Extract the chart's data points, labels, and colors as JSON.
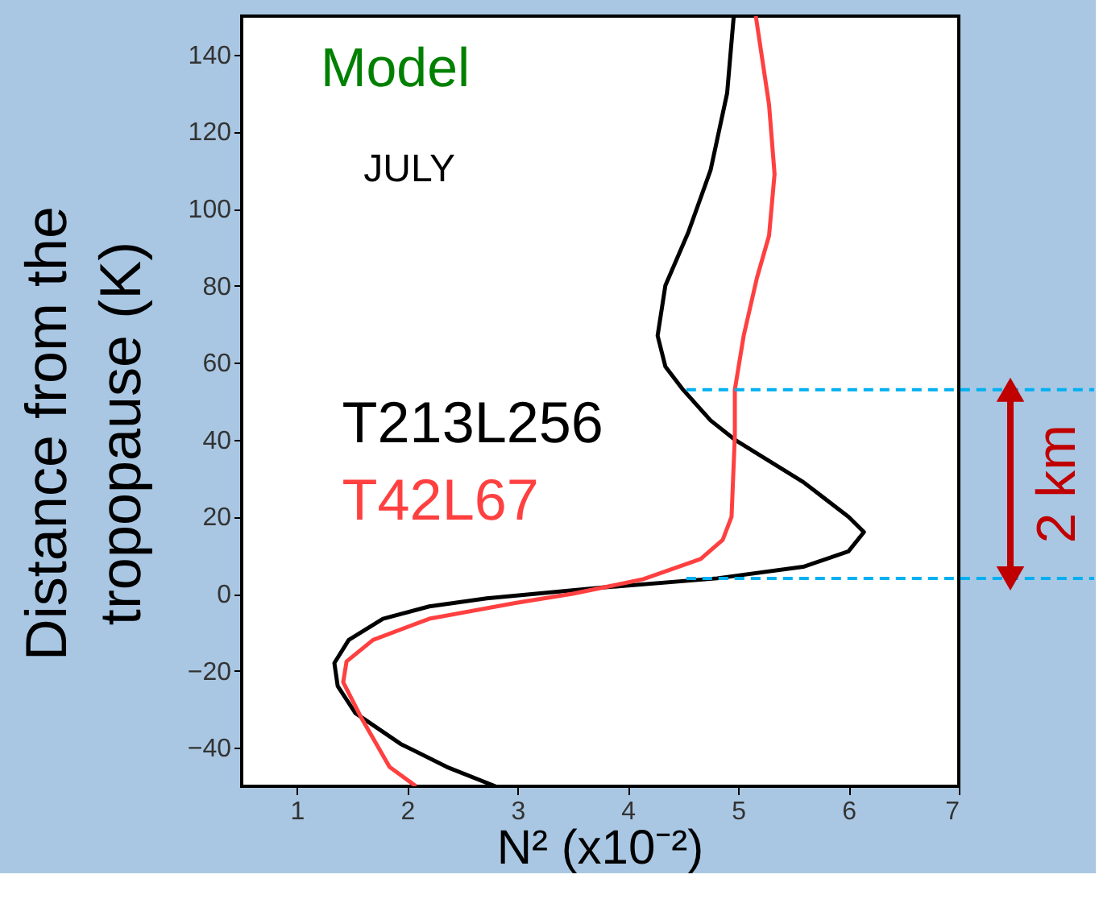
{
  "chart_data": {
    "type": "line",
    "xlabel": "N² (x10⁻²)",
    "ylabel": "Distance from the tropopause (K)",
    "xlim": [
      0.5,
      7
    ],
    "xticks": [
      1,
      2,
      3,
      4,
      5,
      6,
      7
    ],
    "ylim": [
      -50,
      150
    ],
    "yticks": [
      {
        "value": -40,
        "label": "−40"
      },
      {
        "value": -20,
        "label": "−20"
      },
      0,
      20,
      40,
      60,
      80,
      100,
      120,
      140
    ],
    "grid": false,
    "legend": "left",
    "marker": "none",
    "line_style": "solid",
    "series": [
      {
        "name": "T213L256",
        "color": "#000000",
        "x": [
          4.96,
          4.9,
          4.75,
          4.55,
          4.34,
          4.27,
          4.34,
          4.5,
          4.75,
          4.97,
          5.59,
          6.0,
          6.14,
          6.0,
          5.59,
          4.81,
          3.77,
          2.72,
          2.2,
          1.78,
          1.47,
          1.34,
          1.37,
          1.53,
          1.94,
          2.36,
          2.8
        ],
        "values": [
          150,
          130,
          110,
          94,
          80,
          67,
          59,
          53,
          45,
          40,
          29,
          20,
          16,
          11,
          7,
          4,
          1.6,
          -1.2,
          -3.3,
          -6.5,
          -12,
          -18,
          -24,
          -31,
          -39,
          -45,
          -50
        ]
      },
      {
        "name": "T42L67",
        "color": "#ff4040",
        "x": [
          5.16,
          5.28,
          5.33,
          5.28,
          5.17,
          5.05,
          4.97,
          4.97,
          4.94,
          4.86,
          4.66,
          4.13,
          3.5,
          2.98,
          2.2,
          1.69,
          1.45,
          1.42,
          1.58,
          1.84,
          2.08
        ],
        "values": [
          150,
          127,
          109,
          93,
          82,
          67,
          53,
          41,
          20,
          14,
          9,
          3.7,
          0,
          -2.4,
          -6.5,
          -12,
          -17.6,
          -23,
          -32,
          -45,
          -50
        ]
      }
    ],
    "ref_lines": [
      {
        "axis": "y",
        "value": 53,
        "color": "#00b0f0",
        "line_style": "dashed"
      },
      {
        "axis": "y",
        "value": 4,
        "color": "#00b0f0",
        "line_style": "dashed"
      }
    ],
    "annotations": [
      "Model",
      "JULY",
      "2 km"
    ]
  }
}
